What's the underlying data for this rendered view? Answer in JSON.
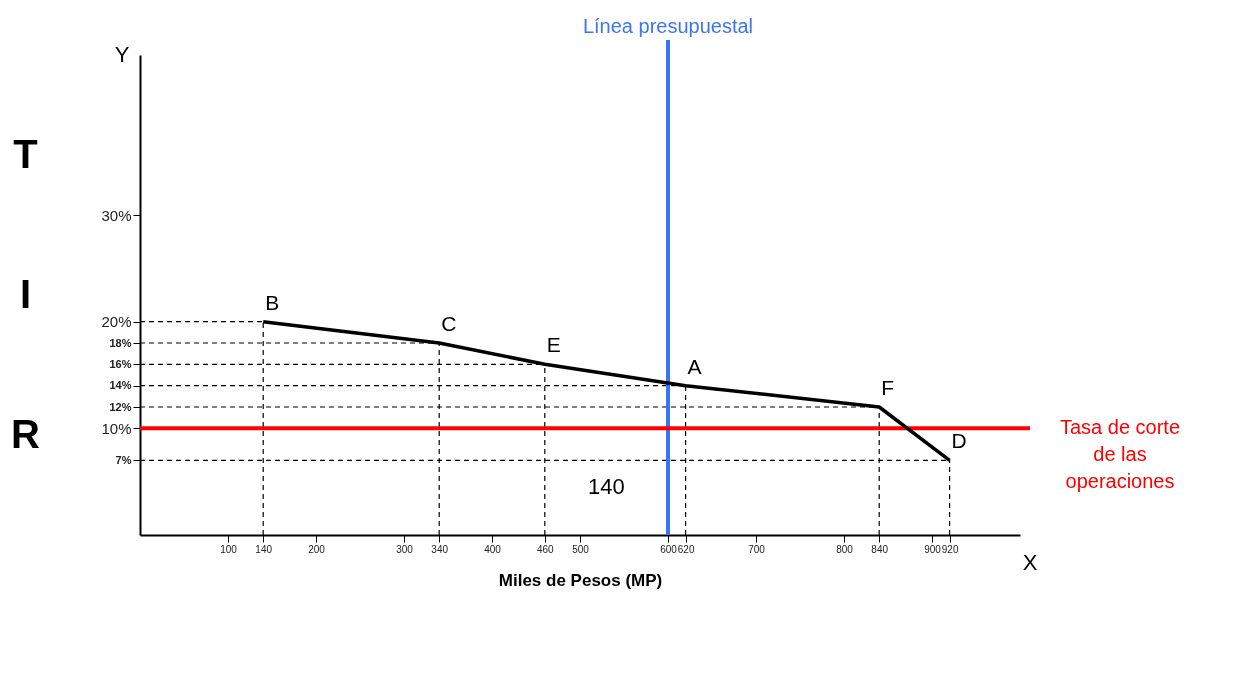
{
  "chart_data": {
    "type": "line",
    "xlabel": "Miles de Pesos (MP)",
    "ylabel": "TIR",
    "x": [
      140,
      340,
      460,
      620,
      840,
      920
    ],
    "series": [
      {
        "color": "#000000",
        "values": [
          20,
          18,
          16,
          14,
          12,
          7
        ]
      }
    ],
    "xlim": [
      0,
      1000
    ],
    "ylim": [
      0,
      45
    ],
    "xticks": [
      100,
      140,
      200,
      300,
      340,
      400,
      460,
      500,
      600,
      620,
      700,
      800,
      840,
      900,
      920
    ],
    "yticks": [
      {
        "value": 7,
        "label": "7%"
      },
      {
        "value": 10,
        "label": "10%"
      },
      {
        "value": 12,
        "label": "12%"
      },
      {
        "value": 14,
        "label": "14%"
      },
      {
        "value": 16,
        "label": "16%"
      },
      {
        "value": 18,
        "label": "18%"
      },
      {
        "value": 20,
        "label": "20%"
      },
      {
        "value": 30,
        "label": "30%"
      }
    ],
    "ref_lines": [
      {
        "axis": "x",
        "value": 600,
        "label": "Línea presupuestal",
        "color": "#3a75f5"
      },
      {
        "axis": "y",
        "value": 10,
        "label": "Tasa de corte de las operaciones",
        "color": "#ff0000"
      }
    ],
    "annotations": [
      "Y",
      "X",
      {
        "text": "B",
        "x": 140,
        "y": 20
      },
      {
        "text": "C",
        "x": 340,
        "y": 18
      },
      {
        "text": "E",
        "x": 460,
        "y": 16
      },
      {
        "text": "A",
        "x": 620,
        "y": 14
      },
      {
        "text": "F",
        "x": 840,
        "y": 12
      },
      {
        "text": "D",
        "x": 920,
        "y": 7
      },
      "140"
    ],
    "marker": "none",
    "line_style": "solid"
  }
}
